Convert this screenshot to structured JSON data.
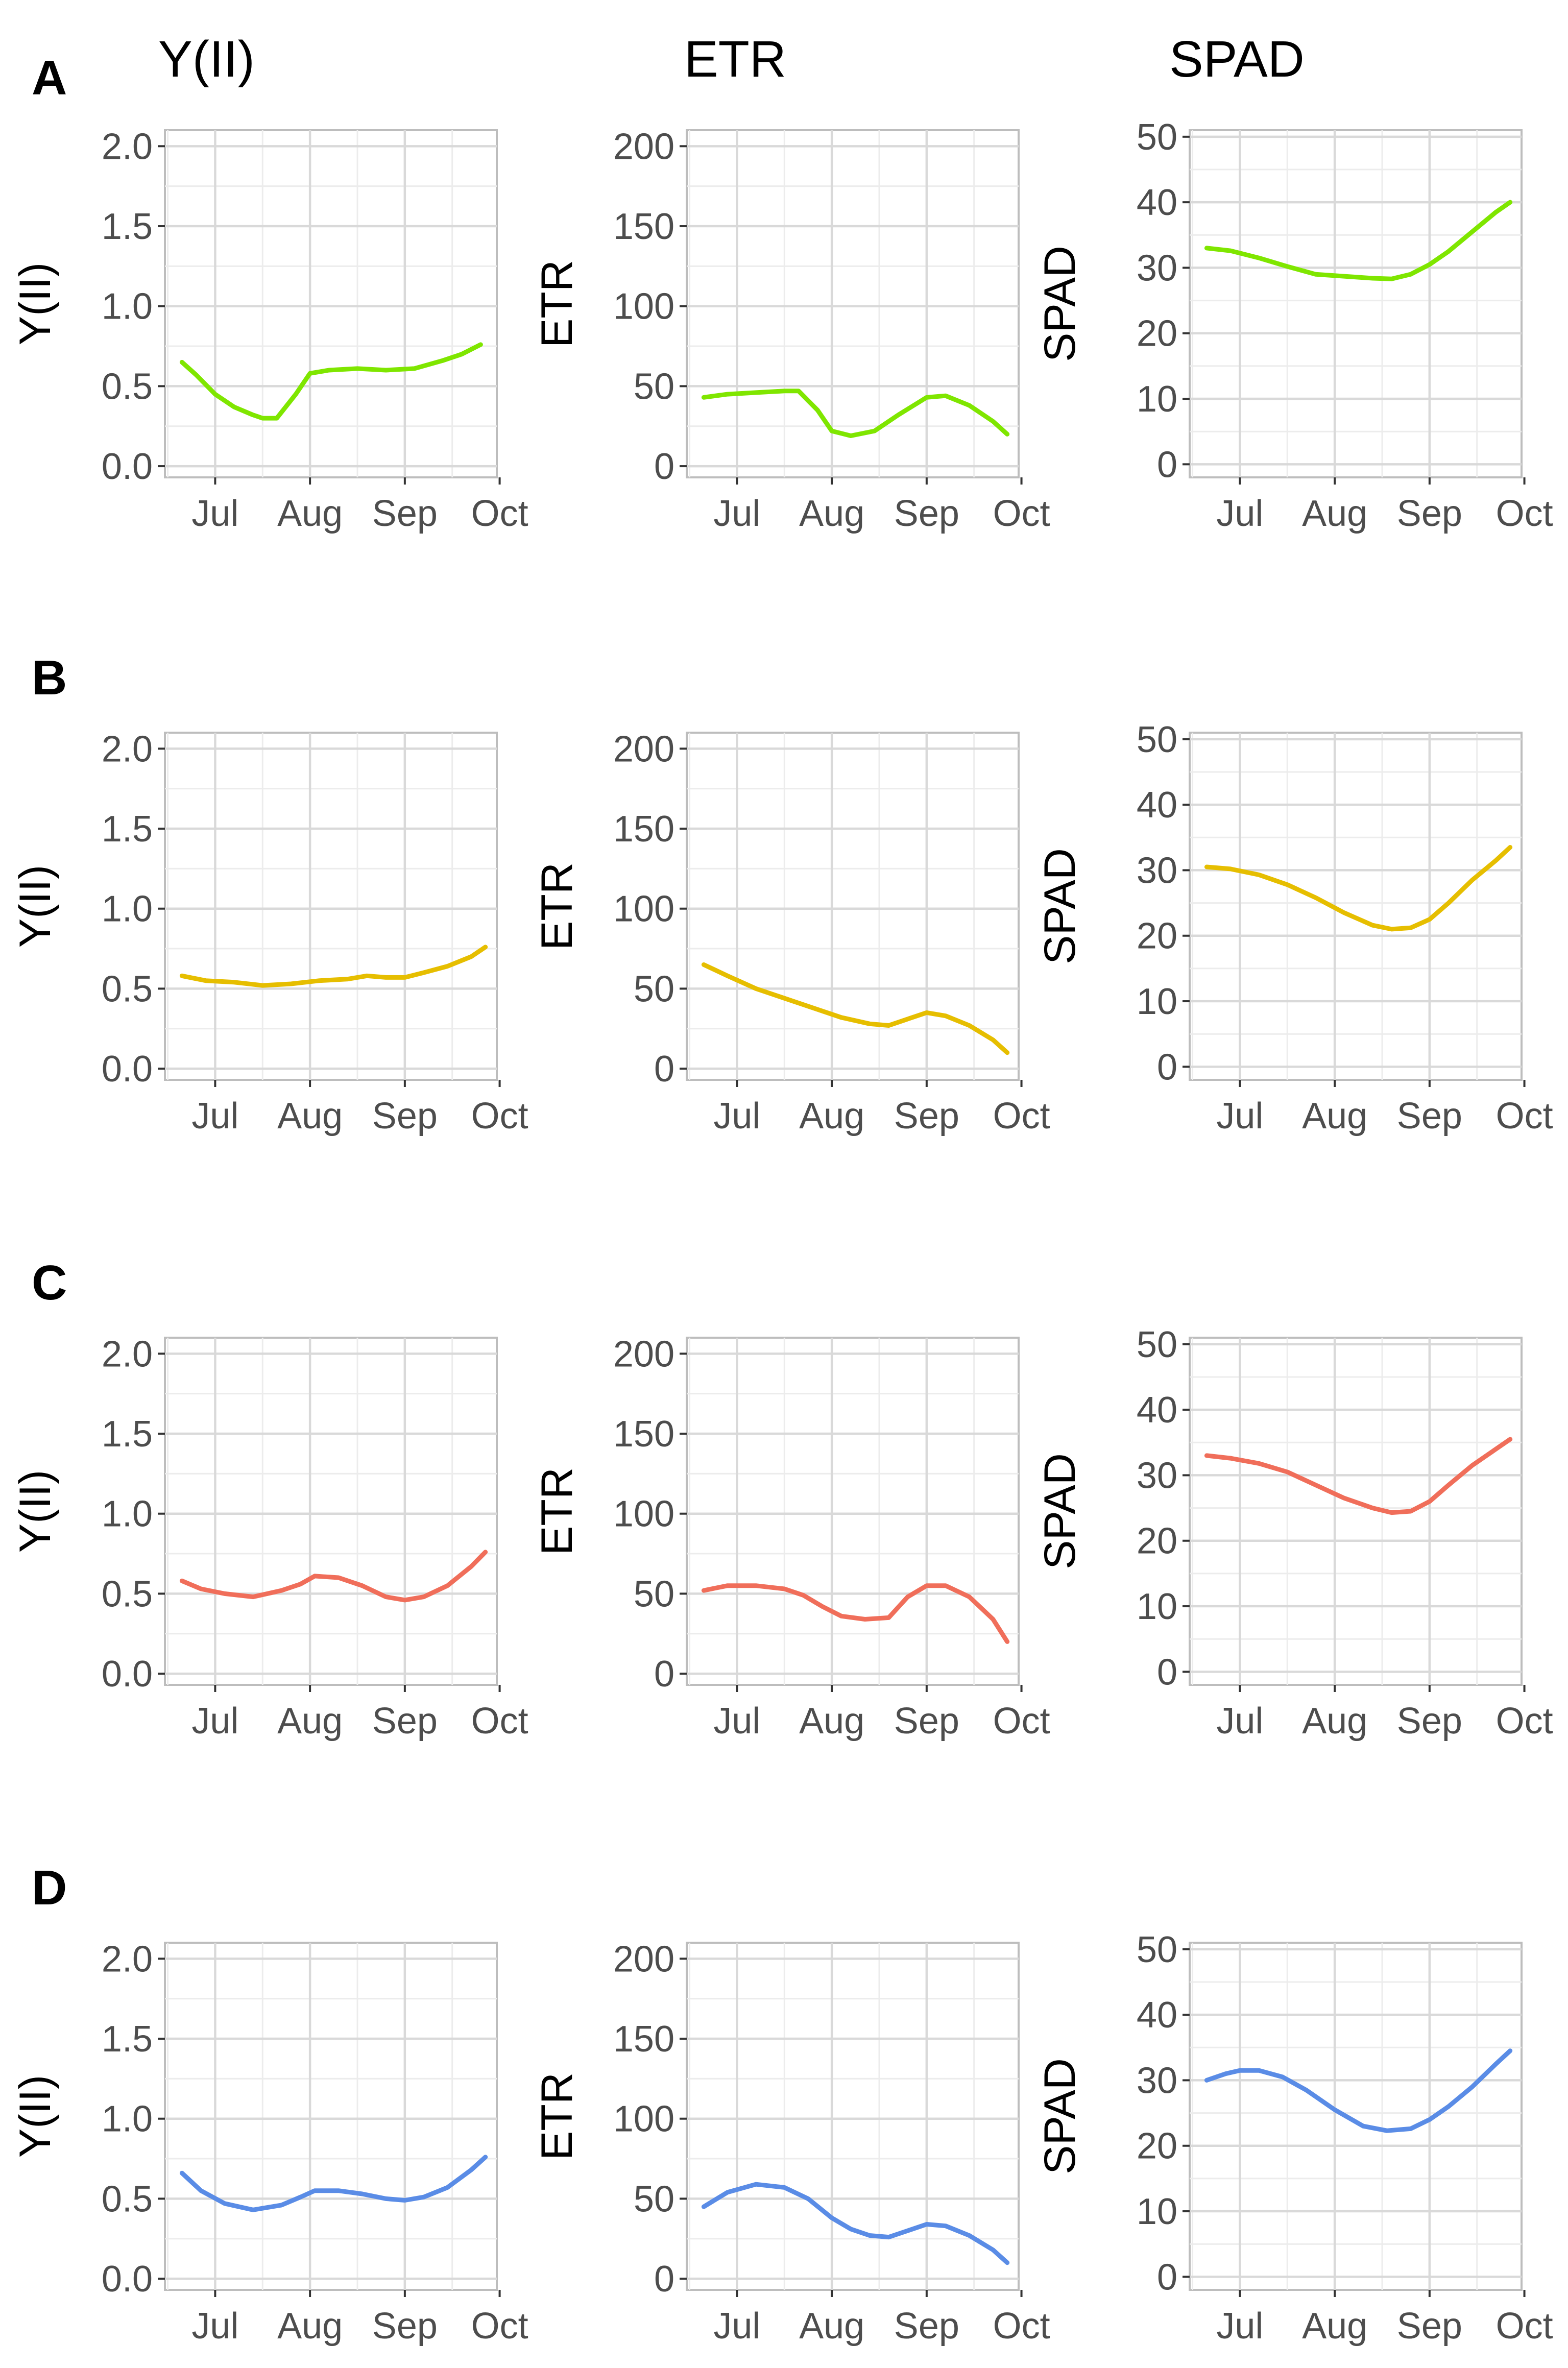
{
  "column_titles": [
    "Y(II)",
    "ETR",
    "SPAD"
  ],
  "chart_data": [
    {
      "type": "line",
      "panel": "A",
      "title": "Y(II)",
      "ylabel": "Y(II)",
      "color": "#7FE600",
      "xlim": [
        0.47,
        3.97
      ],
      "ylim": [
        -0.07,
        2.1
      ],
      "x_ticks": [
        1,
        2,
        3,
        4
      ],
      "x_tick_labels": [
        "Jul",
        "Aug",
        "Sep",
        "Oct"
      ],
      "y_ticks": [
        0,
        0.5,
        1,
        1.5,
        2
      ],
      "y_tick_labels": [
        "0.0",
        "0.5",
        "1.0",
        "1.5",
        "2.0"
      ],
      "x": [
        0.65,
        0.8,
        1.0,
        1.2,
        1.4,
        1.5,
        1.65,
        1.85,
        2.0,
        2.2,
        2.5,
        2.8,
        3.1,
        3.4,
        3.6,
        3.8
      ],
      "y": [
        0.65,
        0.57,
        0.45,
        0.37,
        0.32,
        0.3,
        0.3,
        0.45,
        0.58,
        0.6,
        0.61,
        0.6,
        0.61,
        0.66,
        0.7,
        0.76
      ]
    },
    {
      "type": "line",
      "panel": "A",
      "title": "ETR",
      "ylabel": "ETR",
      "color": "#7FE600",
      "xlim": [
        0.47,
        3.97
      ],
      "ylim": [
        -7,
        210
      ],
      "x_ticks": [
        1,
        2,
        3,
        4
      ],
      "x_tick_labels": [
        "Jul",
        "Aug",
        "Sep",
        "Oct"
      ],
      "y_ticks": [
        0,
        50,
        100,
        150,
        200
      ],
      "y_tick_labels": [
        "0",
        "50",
        "100",
        "150",
        "200"
      ],
      "x": [
        0.65,
        0.9,
        1.2,
        1.5,
        1.65,
        1.85,
        2.0,
        2.2,
        2.45,
        2.7,
        3.0,
        3.2,
        3.45,
        3.7,
        3.85
      ],
      "y": [
        43,
        45,
        46,
        47,
        47,
        35,
        22,
        19,
        22,
        32,
        43,
        44,
        38,
        28,
        20
      ]
    },
    {
      "type": "line",
      "panel": "A",
      "title": "SPAD",
      "ylabel": "SPAD",
      "color": "#7FE600",
      "xlim": [
        0.47,
        3.97
      ],
      "ylim": [
        -2,
        51
      ],
      "x_ticks": [
        1,
        2,
        3,
        4
      ],
      "x_tick_labels": [
        "Jul",
        "Aug",
        "Sep",
        "Oct"
      ],
      "y_ticks": [
        0,
        10,
        20,
        30,
        40,
        50
      ],
      "y_tick_labels": [
        "0",
        "10",
        "20",
        "30",
        "40",
        "50"
      ],
      "x": [
        0.65,
        0.9,
        1.2,
        1.5,
        1.8,
        2.1,
        2.4,
        2.6,
        2.8,
        3.0,
        3.2,
        3.45,
        3.7,
        3.85
      ],
      "y": [
        33,
        32.6,
        31.5,
        30.2,
        29,
        28.7,
        28.4,
        28.3,
        29,
        30.5,
        32.5,
        35.5,
        38.5,
        40
      ]
    },
    {
      "type": "line",
      "panel": "B",
      "title": "Y(II)",
      "ylabel": "Y(II)",
      "color": "#E6BE00",
      "xlim": [
        0.47,
        3.97
      ],
      "ylim": [
        -0.07,
        2.1
      ],
      "x_ticks": [
        1,
        2,
        3,
        4
      ],
      "x_tick_labels": [
        "Jul",
        "Aug",
        "Sep",
        "Oct"
      ],
      "y_ticks": [
        0,
        0.5,
        1,
        1.5,
        2
      ],
      "y_tick_labels": [
        "0.0",
        "0.5",
        "1.0",
        "1.5",
        "2.0"
      ],
      "x": [
        0.65,
        0.9,
        1.2,
        1.5,
        1.8,
        2.1,
        2.4,
        2.6,
        2.8,
        3.0,
        3.2,
        3.45,
        3.7,
        3.85
      ],
      "y": [
        0.58,
        0.55,
        0.54,
        0.52,
        0.53,
        0.55,
        0.56,
        0.58,
        0.57,
        0.57,
        0.6,
        0.64,
        0.7,
        0.76
      ]
    },
    {
      "type": "line",
      "panel": "B",
      "title": "ETR",
      "ylabel": "ETR",
      "color": "#E6BE00",
      "xlim": [
        0.47,
        3.97
      ],
      "ylim": [
        -7,
        210
      ],
      "x_ticks": [
        1,
        2,
        3,
        4
      ],
      "x_tick_labels": [
        "Jul",
        "Aug",
        "Sep",
        "Oct"
      ],
      "y_ticks": [
        0,
        50,
        100,
        150,
        200
      ],
      "y_tick_labels": [
        "0",
        "50",
        "100",
        "150",
        "200"
      ],
      "x": [
        0.65,
        0.9,
        1.2,
        1.5,
        1.8,
        2.1,
        2.4,
        2.6,
        2.8,
        3.0,
        3.2,
        3.45,
        3.7,
        3.85
      ],
      "y": [
        65,
        58,
        50,
        44,
        38,
        32,
        28,
        27,
        31,
        35,
        33,
        27,
        18,
        10
      ]
    },
    {
      "type": "line",
      "panel": "B",
      "title": "SPAD",
      "ylabel": "SPAD",
      "color": "#E6BE00",
      "xlim": [
        0.47,
        3.97
      ],
      "ylim": [
        -2,
        51
      ],
      "x_ticks": [
        1,
        2,
        3,
        4
      ],
      "x_tick_labels": [
        "Jul",
        "Aug",
        "Sep",
        "Oct"
      ],
      "y_ticks": [
        0,
        10,
        20,
        30,
        40,
        50
      ],
      "y_tick_labels": [
        "0",
        "10",
        "20",
        "30",
        "40",
        "50"
      ],
      "x": [
        0.65,
        0.9,
        1.2,
        1.5,
        1.8,
        2.1,
        2.4,
        2.6,
        2.8,
        3.0,
        3.2,
        3.45,
        3.7,
        3.85
      ],
      "y": [
        30.5,
        30.2,
        29.3,
        27.8,
        25.8,
        23.5,
        21.6,
        21,
        21.2,
        22.5,
        25,
        28.5,
        31.5,
        33.5
      ]
    },
    {
      "type": "line",
      "panel": "C",
      "title": "Y(II)",
      "ylabel": "Y(II)",
      "color": "#F06E5A",
      "xlim": [
        0.47,
        3.97
      ],
      "ylim": [
        -0.07,
        2.1
      ],
      "x_ticks": [
        1,
        2,
        3,
        4
      ],
      "x_tick_labels": [
        "Jul",
        "Aug",
        "Sep",
        "Oct"
      ],
      "y_ticks": [
        0,
        0.5,
        1,
        1.5,
        2
      ],
      "y_tick_labels": [
        "0.0",
        "0.5",
        "1.0",
        "1.5",
        "2.0"
      ],
      "x": [
        0.65,
        0.85,
        1.1,
        1.4,
        1.7,
        1.9,
        2.05,
        2.3,
        2.55,
        2.8,
        3.0,
        3.2,
        3.45,
        3.7,
        3.85
      ],
      "y": [
        0.58,
        0.53,
        0.5,
        0.48,
        0.52,
        0.56,
        0.61,
        0.6,
        0.55,
        0.48,
        0.46,
        0.48,
        0.55,
        0.67,
        0.76
      ]
    },
    {
      "type": "line",
      "panel": "C",
      "title": "ETR",
      "ylabel": "ETR",
      "color": "#F06E5A",
      "xlim": [
        0.47,
        3.97
      ],
      "ylim": [
        -7,
        210
      ],
      "x_ticks": [
        1,
        2,
        3,
        4
      ],
      "x_tick_labels": [
        "Jul",
        "Aug",
        "Sep",
        "Oct"
      ],
      "y_ticks": [
        0,
        50,
        100,
        150,
        200
      ],
      "y_tick_labels": [
        "0",
        "50",
        "100",
        "150",
        "200"
      ],
      "x": [
        0.65,
        0.9,
        1.2,
        1.5,
        1.7,
        1.9,
        2.1,
        2.35,
        2.6,
        2.8,
        3.0,
        3.2,
        3.45,
        3.7,
        3.85
      ],
      "y": [
        52,
        55,
        55,
        53,
        49,
        42,
        36,
        34,
        35,
        48,
        55,
        55,
        48,
        34,
        20
      ]
    },
    {
      "type": "line",
      "panel": "C",
      "title": "SPAD",
      "ylabel": "SPAD",
      "color": "#F06E5A",
      "xlim": [
        0.47,
        3.97
      ],
      "ylim": [
        -2,
        51
      ],
      "x_ticks": [
        1,
        2,
        3,
        4
      ],
      "x_tick_labels": [
        "Jul",
        "Aug",
        "Sep",
        "Oct"
      ],
      "y_ticks": [
        0,
        10,
        20,
        30,
        40,
        50
      ],
      "y_tick_labels": [
        "0",
        "10",
        "20",
        "30",
        "40",
        "50"
      ],
      "x": [
        0.65,
        0.9,
        1.2,
        1.5,
        1.8,
        2.1,
        2.4,
        2.6,
        2.8,
        3.0,
        3.2,
        3.45,
        3.7,
        3.85
      ],
      "y": [
        33,
        32.6,
        31.8,
        30.5,
        28.5,
        26.5,
        25,
        24.3,
        24.5,
        26,
        28.5,
        31.5,
        34,
        35.5
      ]
    },
    {
      "type": "line",
      "panel": "D",
      "title": "Y(II)",
      "ylabel": "Y(II)",
      "color": "#5A8CE6",
      "xlim": [
        0.47,
        3.97
      ],
      "ylim": [
        -0.07,
        2.1
      ],
      "x_ticks": [
        1,
        2,
        3,
        4
      ],
      "x_tick_labels": [
        "Jul",
        "Aug",
        "Sep",
        "Oct"
      ],
      "y_ticks": [
        0,
        0.5,
        1,
        1.5,
        2
      ],
      "y_tick_labels": [
        "0.0",
        "0.5",
        "1.0",
        "1.5",
        "2.0"
      ],
      "x": [
        0.65,
        0.85,
        1.1,
        1.4,
        1.7,
        1.9,
        2.05,
        2.3,
        2.55,
        2.8,
        3.0,
        3.2,
        3.45,
        3.7,
        3.85
      ],
      "y": [
        0.66,
        0.55,
        0.47,
        0.43,
        0.46,
        0.51,
        0.55,
        0.55,
        0.53,
        0.5,
        0.49,
        0.51,
        0.57,
        0.68,
        0.76
      ]
    },
    {
      "type": "line",
      "panel": "D",
      "title": "ETR",
      "ylabel": "ETR",
      "color": "#5A8CE6",
      "xlim": [
        0.47,
        3.97
      ],
      "ylim": [
        -7,
        210
      ],
      "x_ticks": [
        1,
        2,
        3,
        4
      ],
      "x_tick_labels": [
        "Jul",
        "Aug",
        "Sep",
        "Oct"
      ],
      "y_ticks": [
        0,
        50,
        100,
        150,
        200
      ],
      "y_tick_labels": [
        "0",
        "50",
        "100",
        "150",
        "200"
      ],
      "x": [
        0.65,
        0.9,
        1.2,
        1.5,
        1.75,
        2.0,
        2.2,
        2.4,
        2.6,
        2.8,
        3.0,
        3.2,
        3.45,
        3.7,
        3.85
      ],
      "y": [
        45,
        54,
        59,
        57,
        50,
        38,
        31,
        27,
        26,
        30,
        34,
        33,
        27,
        18,
        10
      ]
    },
    {
      "type": "line",
      "panel": "D",
      "title": "SPAD",
      "ylabel": "SPAD",
      "color": "#5A8CE6",
      "xlim": [
        0.47,
        3.97
      ],
      "ylim": [
        -2,
        51
      ],
      "x_ticks": [
        1,
        2,
        3,
        4
      ],
      "x_tick_labels": [
        "Jul",
        "Aug",
        "Sep",
        "Oct"
      ],
      "y_ticks": [
        0,
        10,
        20,
        30,
        40,
        50
      ],
      "y_tick_labels": [
        "0",
        "10",
        "20",
        "30",
        "40",
        "50"
      ],
      "x": [
        0.65,
        0.85,
        1.0,
        1.2,
        1.45,
        1.7,
        2.0,
        2.3,
        2.55,
        2.8,
        3.0,
        3.2,
        3.45,
        3.7,
        3.85
      ],
      "y": [
        30,
        31,
        31.5,
        31.5,
        30.5,
        28.5,
        25.5,
        23,
        22.3,
        22.6,
        24,
        26,
        29,
        32.5,
        34.5
      ]
    }
  ]
}
